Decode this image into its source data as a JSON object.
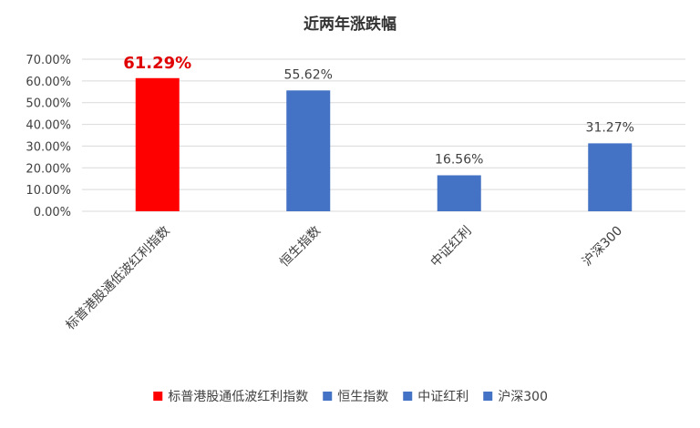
{
  "chart_data": {
    "type": "bar",
    "title": "近两年涨跌幅",
    "categories": [
      "标普港股通低波红利指数",
      "恒生指数",
      "中证红利",
      "沪深300"
    ],
    "values": [
      61.29,
      55.62,
      16.56,
      31.27
    ],
    "data_labels": [
      "61.29%",
      "55.62%",
      "16.56%",
      "31.27%"
    ],
    "colors": [
      "#ff0000",
      "#4472c4",
      "#4472c4",
      "#4472c4"
    ],
    "highlight_index": 0,
    "highlight_label_color": "#e00000",
    "ylim": [
      0,
      70
    ],
    "yticks": [
      0,
      10,
      20,
      30,
      40,
      50,
      60,
      70
    ],
    "ytick_labels": [
      "0.00%",
      "10.00%",
      "20.00%",
      "30.00%",
      "40.00%",
      "50.00%",
      "60.00%",
      "70.00%"
    ],
    "grid": true,
    "grid_color": "#d9d9d9",
    "legend": {
      "position": "bottom",
      "entries": [
        {
          "label": "标普港股通低波红利指数",
          "color": "#ff0000"
        },
        {
          "label": "恒生指数",
          "color": "#4472c4"
        },
        {
          "label": "中证红利",
          "color": "#4472c4"
        },
        {
          "label": "沪深300",
          "color": "#4472c4"
        }
      ]
    },
    "xlabel": "",
    "ylabel": ""
  }
}
